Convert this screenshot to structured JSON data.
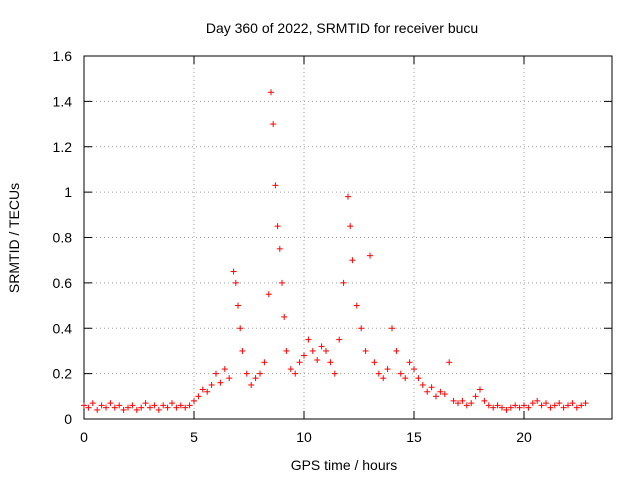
{
  "chart_data": {
    "type": "scatter",
    "title": "Day 360 of 2022, SRMTID for receiver bucu",
    "xlabel": "GPS time / hours",
    "ylabel": "SRMTID / TECUs",
    "xlim": [
      0,
      24
    ],
    "ylim": [
      0,
      1.6
    ],
    "xticks": [
      "0",
      "5",
      "10",
      "15",
      "20"
    ],
    "yticks": [
      "0",
      "0.2",
      "0.4",
      "0.6",
      "0.8",
      "1",
      "1.2",
      "1.4",
      "1.6"
    ],
    "grid": true,
    "marker": "+",
    "color": "#ff0000",
    "series": [
      {
        "name": "bucu",
        "points": [
          [
            0.0,
            0.06
          ],
          [
            0.2,
            0.05
          ],
          [
            0.4,
            0.07
          ],
          [
            0.6,
            0.04
          ],
          [
            0.8,
            0.06
          ],
          [
            1.0,
            0.05
          ],
          [
            1.2,
            0.07
          ],
          [
            1.4,
            0.05
          ],
          [
            1.6,
            0.06
          ],
          [
            1.8,
            0.04
          ],
          [
            2.0,
            0.05
          ],
          [
            2.2,
            0.06
          ],
          [
            2.4,
            0.04
          ],
          [
            2.6,
            0.05
          ],
          [
            2.8,
            0.07
          ],
          [
            3.0,
            0.05
          ],
          [
            3.2,
            0.06
          ],
          [
            3.4,
            0.04
          ],
          [
            3.6,
            0.06
          ],
          [
            3.8,
            0.05
          ],
          [
            4.0,
            0.07
          ],
          [
            4.2,
            0.05
          ],
          [
            4.4,
            0.06
          ],
          [
            4.6,
            0.05
          ],
          [
            4.8,
            0.06
          ],
          [
            5.0,
            0.08
          ],
          [
            5.2,
            0.1
          ],
          [
            5.4,
            0.13
          ],
          [
            5.6,
            0.12
          ],
          [
            5.8,
            0.15
          ],
          [
            6.0,
            0.2
          ],
          [
            6.2,
            0.16
          ],
          [
            6.4,
            0.22
          ],
          [
            6.6,
            0.18
          ],
          [
            6.8,
            0.65
          ],
          [
            6.9,
            0.6
          ],
          [
            7.0,
            0.5
          ],
          [
            7.1,
            0.4
          ],
          [
            7.2,
            0.3
          ],
          [
            7.4,
            0.2
          ],
          [
            7.6,
            0.15
          ],
          [
            7.8,
            0.18
          ],
          [
            8.0,
            0.2
          ],
          [
            8.2,
            0.25
          ],
          [
            8.4,
            0.55
          ],
          [
            8.5,
            1.44
          ],
          [
            8.6,
            1.3
          ],
          [
            8.7,
            1.03
          ],
          [
            8.8,
            0.85
          ],
          [
            8.9,
            0.75
          ],
          [
            9.0,
            0.6
          ],
          [
            9.1,
            0.45
          ],
          [
            9.2,
            0.3
          ],
          [
            9.4,
            0.22
          ],
          [
            9.6,
            0.2
          ],
          [
            9.8,
            0.25
          ],
          [
            10.0,
            0.28
          ],
          [
            10.2,
            0.35
          ],
          [
            10.4,
            0.3
          ],
          [
            10.6,
            0.26
          ],
          [
            10.8,
            0.32
          ],
          [
            11.0,
            0.3
          ],
          [
            11.2,
            0.25
          ],
          [
            11.4,
            0.2
          ],
          [
            11.6,
            0.35
          ],
          [
            11.8,
            0.6
          ],
          [
            12.0,
            0.98
          ],
          [
            12.1,
            0.85
          ],
          [
            12.2,
            0.7
          ],
          [
            12.4,
            0.5
          ],
          [
            12.6,
            0.4
          ],
          [
            12.8,
            0.3
          ],
          [
            13.0,
            0.72
          ],
          [
            13.2,
            0.25
          ],
          [
            13.4,
            0.2
          ],
          [
            13.6,
            0.18
          ],
          [
            13.8,
            0.22
          ],
          [
            14.0,
            0.4
          ],
          [
            14.2,
            0.3
          ],
          [
            14.4,
            0.2
          ],
          [
            14.6,
            0.18
          ],
          [
            14.8,
            0.25
          ],
          [
            15.0,
            0.22
          ],
          [
            15.2,
            0.18
          ],
          [
            15.4,
            0.15
          ],
          [
            15.6,
            0.12
          ],
          [
            15.8,
            0.14
          ],
          [
            16.0,
            0.1
          ],
          [
            16.2,
            0.12
          ],
          [
            16.4,
            0.11
          ],
          [
            16.6,
            0.25
          ],
          [
            16.8,
            0.08
          ],
          [
            17.0,
            0.07
          ],
          [
            17.2,
            0.08
          ],
          [
            17.4,
            0.06
          ],
          [
            17.6,
            0.07
          ],
          [
            17.8,
            0.1
          ],
          [
            18.0,
            0.13
          ],
          [
            18.2,
            0.08
          ],
          [
            18.4,
            0.06
          ],
          [
            18.6,
            0.05
          ],
          [
            18.8,
            0.06
          ],
          [
            19.0,
            0.05
          ],
          [
            19.2,
            0.04
          ],
          [
            19.4,
            0.05
          ],
          [
            19.6,
            0.06
          ],
          [
            19.8,
            0.05
          ],
          [
            20.0,
            0.06
          ],
          [
            20.2,
            0.05
          ],
          [
            20.4,
            0.07
          ],
          [
            20.6,
            0.08
          ],
          [
            20.8,
            0.06
          ],
          [
            21.0,
            0.07
          ],
          [
            21.2,
            0.05
          ],
          [
            21.4,
            0.06
          ],
          [
            21.6,
            0.07
          ],
          [
            21.8,
            0.05
          ],
          [
            22.0,
            0.06
          ],
          [
            22.2,
            0.07
          ],
          [
            22.4,
            0.05
          ],
          [
            22.6,
            0.06
          ],
          [
            22.8,
            0.07
          ]
        ]
      }
    ]
  }
}
